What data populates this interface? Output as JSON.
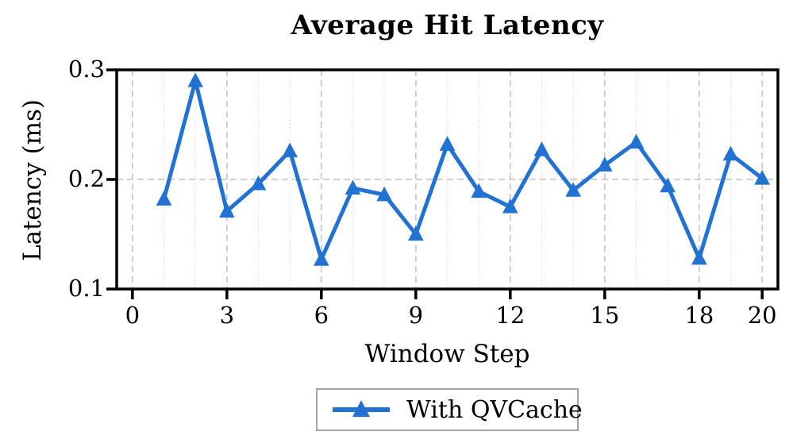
{
  "figure": {
    "title": "Average Hit Latency",
    "x_label": "Window Step",
    "y_label": "Latency (ms)"
  },
  "legend": {
    "label": "With QVCache"
  },
  "colors": {
    "line": "#2272d4",
    "grid_major": "#c9c9c9",
    "grid_minor": "#dedede",
    "spine": "#000000",
    "legend_border": "#a3a3a3",
    "background": "#ffffff"
  },
  "chart_data": {
    "type": "line",
    "title": "Average Hit Latency",
    "xlabel": "Window Step",
    "ylabel": "Latency (ms)",
    "xlim": [
      -0.5,
      20.5
    ],
    "ylim": [
      0.1,
      0.3
    ],
    "x_ticks": [
      0,
      3,
      6,
      9,
      12,
      15,
      18,
      20
    ],
    "x_minor_ticks": [
      1,
      2,
      4,
      5,
      7,
      8,
      10,
      11,
      13,
      14,
      16,
      17,
      19
    ],
    "y_ticks": [
      0.1,
      0.2,
      0.3
    ],
    "y_tick_labels": [
      "0.1",
      "0.2",
      "0.3"
    ],
    "grid": {
      "major_style": "dashed",
      "minor_style": "dotted",
      "horizontal_major_at": [
        0.2
      ]
    },
    "legend_position": "below-axis",
    "series": [
      {
        "name": "With QVCache",
        "marker": "triangle-up",
        "x": [
          1,
          2,
          3,
          4,
          5,
          6,
          7,
          8,
          9,
          10,
          11,
          12,
          13,
          14,
          15,
          16,
          17,
          18,
          19,
          20
        ],
        "y": [
          0.182,
          0.29,
          0.171,
          0.196,
          0.226,
          0.127,
          0.192,
          0.186,
          0.15,
          0.232,
          0.189,
          0.175,
          0.227,
          0.19,
          0.213,
          0.234,
          0.194,
          0.128,
          0.223,
          0.201
        ]
      }
    ]
  }
}
